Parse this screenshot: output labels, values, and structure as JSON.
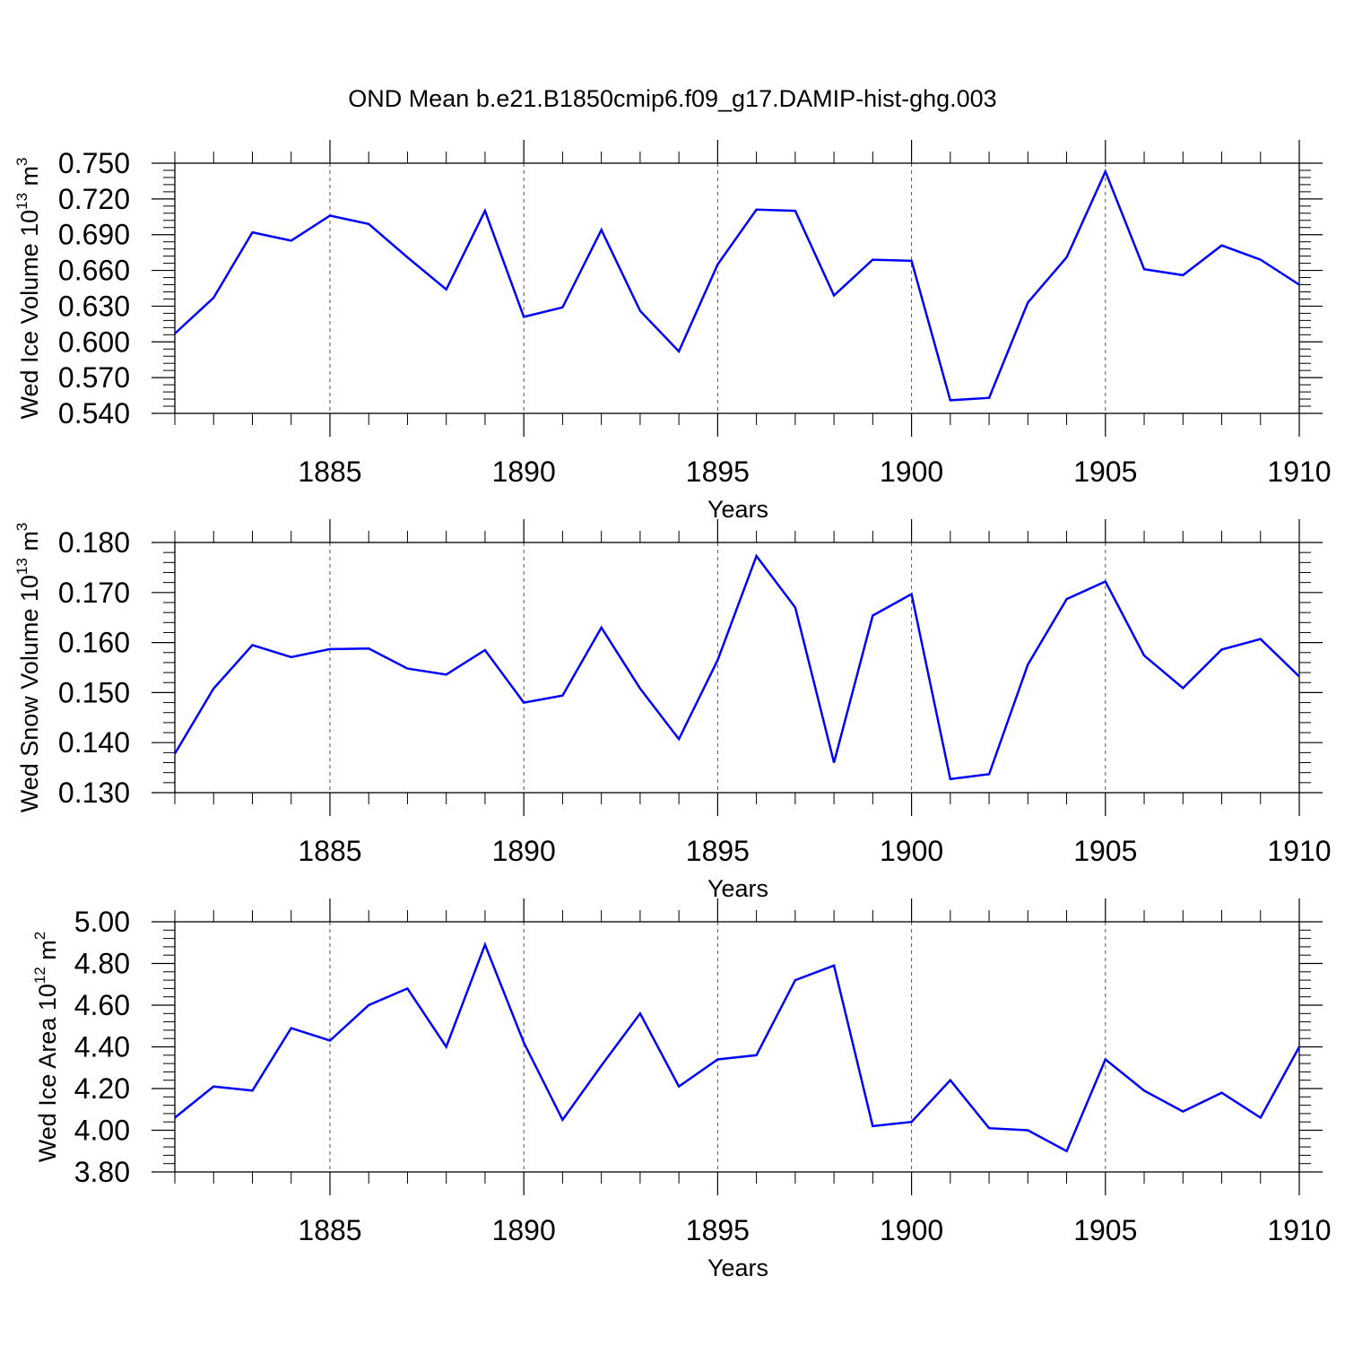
{
  "title": "OND Mean b.e21.B1850cmip6.f09_g17.DAMIP-hist-ghg.003",
  "colors": {
    "line": "#0000ff",
    "axis": "#000000",
    "grid": "#555555"
  },
  "chart_data": [
    {
      "type": "line",
      "ylabel": {
        "main": "Wed Ice Volume 10",
        "exp": "13",
        "unit": " m",
        "unit_exp": "3"
      },
      "xlabel": "Years",
      "xlim": [
        1881,
        1910
      ],
      "ylim": [
        0.54,
        0.75
      ],
      "yticks": [
        "0.540",
        "0.570",
        "0.600",
        "0.630",
        "0.660",
        "0.690",
        "0.720",
        "0.750"
      ],
      "xticks": [
        "1885",
        "1890",
        "1895",
        "1900",
        "1905",
        "1910"
      ],
      "grid": "dashed vertical at major x ticks",
      "x": [
        1881,
        1882,
        1883,
        1884,
        1885,
        1886,
        1887,
        1888,
        1889,
        1890,
        1891,
        1892,
        1893,
        1894,
        1895,
        1896,
        1897,
        1898,
        1899,
        1900,
        1901,
        1902,
        1903,
        1904,
        1905,
        1906,
        1907,
        1908,
        1909,
        1910
      ],
      "values": [
        0.607,
        0.637,
        0.692,
        0.685,
        0.706,
        0.699,
        0.671,
        0.644,
        0.71,
        0.621,
        0.629,
        0.694,
        0.626,
        0.592,
        0.665,
        0.711,
        0.71,
        0.639,
        0.669,
        0.668,
        0.551,
        0.553,
        0.633,
        0.671,
        0.743,
        0.661,
        0.656,
        0.681,
        0.669,
        0.648
      ]
    },
    {
      "type": "line",
      "ylabel": {
        "main": "Wed Snow Volume 10",
        "exp": "13",
        "unit": " m",
        "unit_exp": "3"
      },
      "xlabel": "Years",
      "xlim": [
        1881,
        1910
      ],
      "ylim": [
        0.13,
        0.18
      ],
      "yticks": [
        "0.130",
        "0.140",
        "0.150",
        "0.160",
        "0.170",
        "0.180"
      ],
      "xticks": [
        "1885",
        "1890",
        "1895",
        "1900",
        "1905",
        "1910"
      ],
      "grid": "dashed vertical at major x ticks",
      "x": [
        1881,
        1882,
        1883,
        1884,
        1885,
        1886,
        1887,
        1888,
        1889,
        1890,
        1891,
        1892,
        1893,
        1894,
        1895,
        1896,
        1897,
        1898,
        1899,
        1900,
        1901,
        1902,
        1903,
        1904,
        1905,
        1906,
        1907,
        1908,
        1909,
        1910
      ],
      "values": [
        0.1378,
        0.1508,
        0.1595,
        0.1571,
        0.1587,
        0.1588,
        0.1548,
        0.1536,
        0.1585,
        0.148,
        0.1494,
        0.163,
        0.1508,
        0.1407,
        0.1565,
        0.1773,
        0.167,
        0.136,
        0.1654,
        0.1697,
        0.1327,
        0.1337,
        0.1556,
        0.1687,
        0.1722,
        0.1574,
        0.1509,
        0.1586,
        0.1607,
        0.1532
      ]
    },
    {
      "type": "line",
      "ylabel": {
        "main": "Wed Ice Area 10",
        "exp": "12",
        "unit": " m",
        "unit_exp": "2"
      },
      "xlabel": "Years",
      "xlim": [
        1881,
        1910
      ],
      "ylim": [
        3.8,
        5.0
      ],
      "yticks": [
        "3.80",
        "4.00",
        "4.20",
        "4.40",
        "4.60",
        "4.80",
        "5.00"
      ],
      "xticks": [
        "1885",
        "1890",
        "1895",
        "1900",
        "1905",
        "1910"
      ],
      "grid": "dashed vertical at major x ticks",
      "x": [
        1881,
        1882,
        1883,
        1884,
        1885,
        1886,
        1887,
        1888,
        1889,
        1890,
        1891,
        1892,
        1893,
        1894,
        1895,
        1896,
        1897,
        1898,
        1899,
        1900,
        1901,
        1902,
        1903,
        1904,
        1905,
        1906,
        1907,
        1908,
        1909,
        1910
      ],
      "values": [
        4.06,
        4.21,
        4.19,
        4.49,
        4.43,
        4.6,
        4.68,
        4.4,
        4.89,
        4.42,
        4.05,
        4.31,
        4.56,
        4.21,
        4.34,
        4.36,
        4.72,
        4.79,
        4.02,
        4.04,
        4.24,
        4.01,
        4.0,
        3.9,
        4.34,
        4.19,
        4.09,
        4.18,
        4.06,
        4.4
      ]
    }
  ]
}
